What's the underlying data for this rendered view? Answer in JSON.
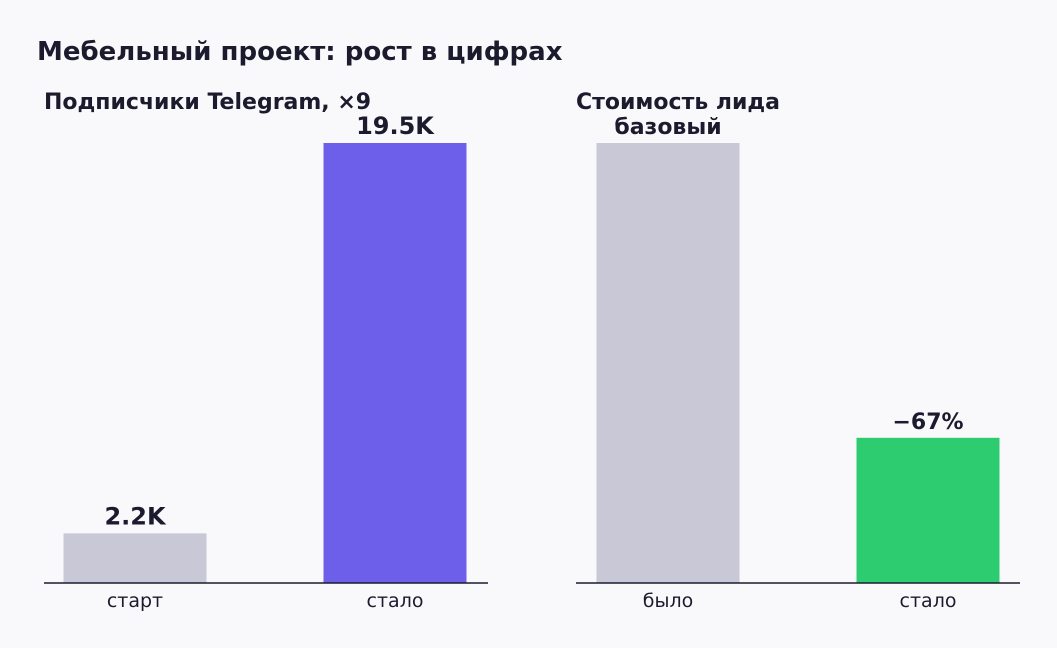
{
  "figure": {
    "title": "Мебельный проект: рост в цифрах"
  },
  "colors": {
    "background": "#f9f9fc",
    "text": "#1c1b2e",
    "baseline": "#1c1b2e",
    "muted_bar": "#c9c8d6",
    "accent_purple": "#6d5fea",
    "accent_green": "#2ecc71"
  },
  "chart_data": [
    {
      "type": "bar",
      "title": "Подписчики Telegram, ×9",
      "categories": [
        "старт",
        "стало"
      ],
      "values": [
        2.2,
        19.5
      ],
      "value_labels": [
        "2.2K",
        "19.5K"
      ],
      "colors": [
        "#c9c8d6",
        "#6d5fea"
      ],
      "ylim": [
        0,
        19.5
      ],
      "xlabel": "",
      "ylabel": "",
      "grid": false,
      "legend": "none"
    },
    {
      "type": "bar",
      "title": "Стоимость лида",
      "categories": [
        "было",
        "стало"
      ],
      "values": [
        1,
        0.33
      ],
      "value_labels": [
        "базовый",
        "−67%"
      ],
      "colors": [
        "#c9c8d6",
        "#2ecc71"
      ],
      "ylim": [
        0,
        1
      ],
      "xlabel": "",
      "ylabel": "",
      "grid": false,
      "legend": "none"
    }
  ]
}
